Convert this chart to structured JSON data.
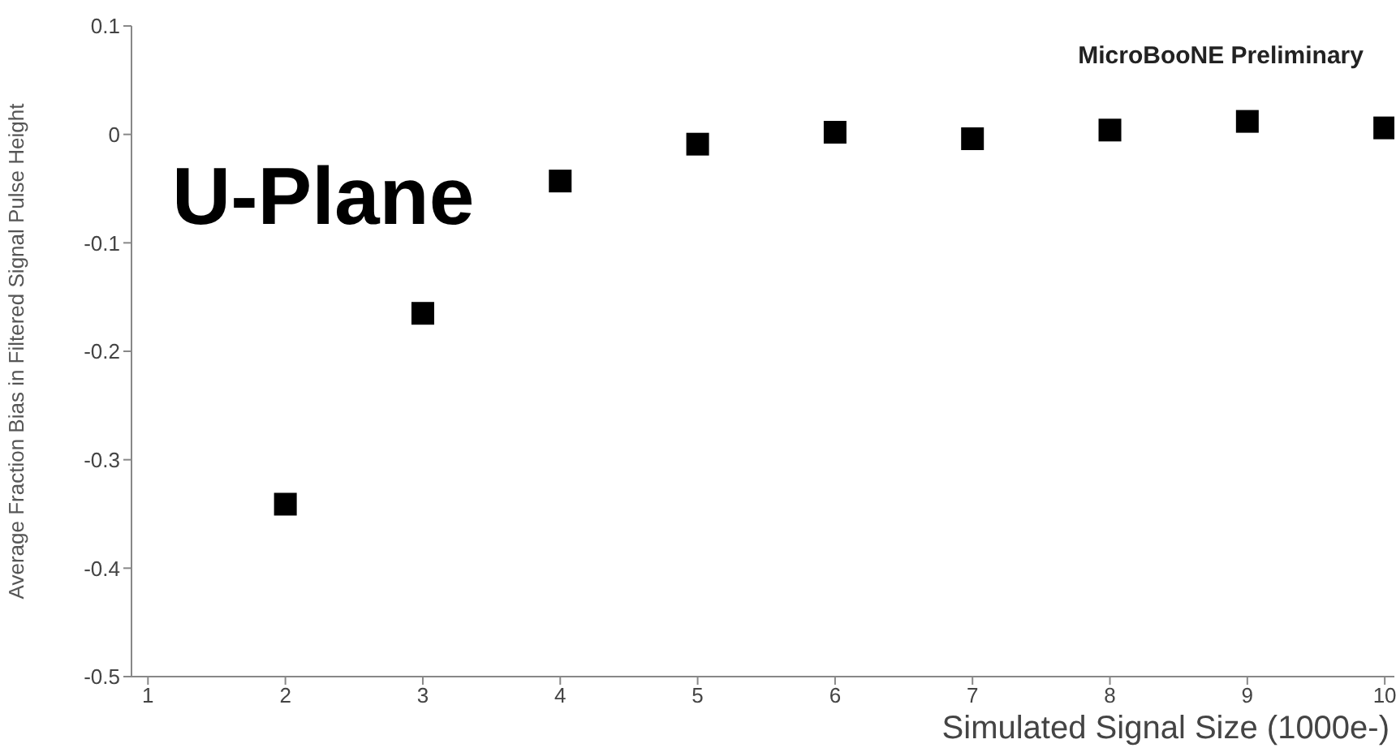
{
  "chart_data": {
    "type": "scatter",
    "xlabel": "Simulated Signal Size (1000e-)",
    "ylabel": "Average Fraction Bias in Filtered Signal Pulse Height",
    "annotations": [
      "U-Plane",
      "MicroBooNE Preliminary"
    ],
    "x": [
      2,
      3,
      4,
      5,
      6,
      7,
      8,
      9,
      10
    ],
    "series": [
      {
        "color": "#000000",
        "values": [
          -0.341,
          -0.165,
          -0.043,
          -0.009,
          0.002,
          -0.004,
          0.004,
          0.012,
          0.006
        ]
      }
    ],
    "xlim": [
      0.88,
      10.07
    ],
    "xticks": [
      1,
      2,
      3,
      4,
      5,
      6,
      7,
      8,
      9,
      10
    ],
    "ylim": [
      -0.5,
      0.1
    ],
    "yticks": [
      -0.5,
      -0.4,
      -0.3,
      -0.2,
      -0.1,
      0,
      0.1
    ],
    "marker": "square",
    "grid": false,
    "legend": false
  }
}
